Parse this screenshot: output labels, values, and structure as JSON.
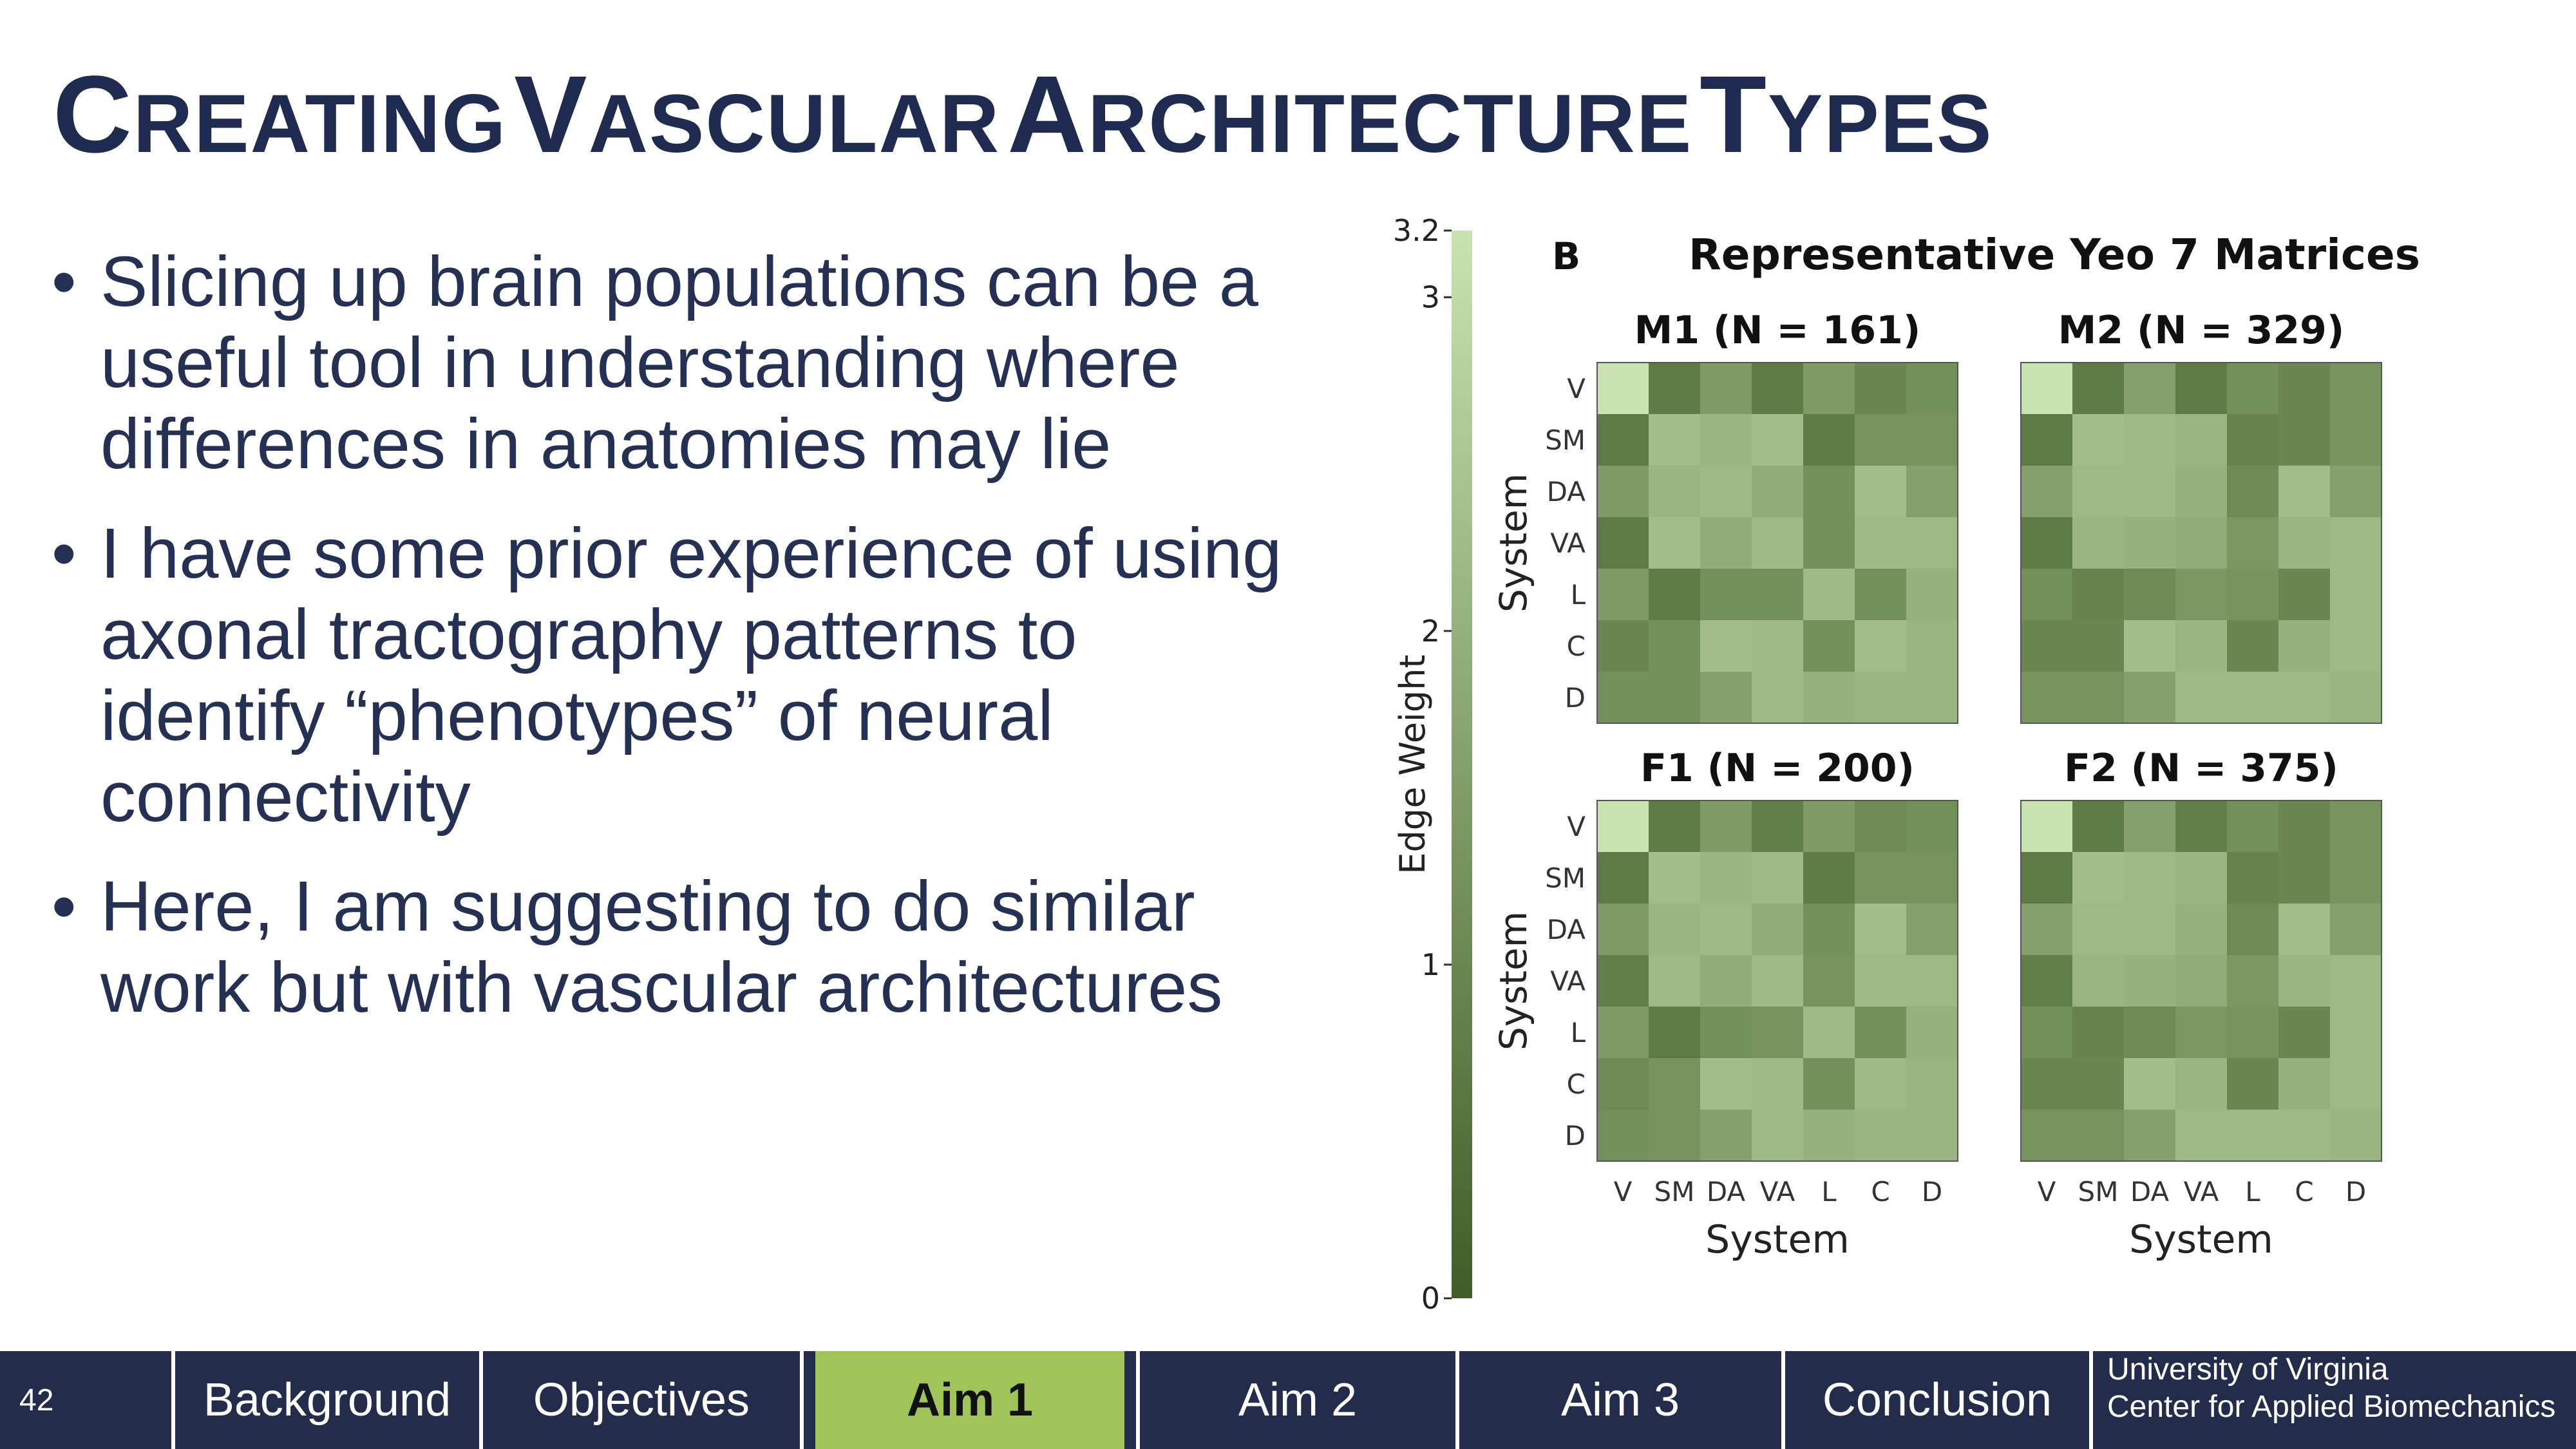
{
  "slide": {
    "title_words": [
      {
        "first": "C",
        "rest": "REATING"
      },
      {
        "first": "V",
        "rest": "ASCULAR"
      },
      {
        "first": "A",
        "rest": "RCHITECTURE"
      },
      {
        "first": "T",
        "rest": "YPES"
      }
    ],
    "bullet_char": "•",
    "bullets": [
      "Slicing up brain populations can be a useful tool in understanding where differences in anatomies may lie",
      "I have some prior experience of using axonal tractography patterns to identify “phenotypes” of neural connectivity",
      "Here, I am suggesting to do similar work but with vascular architectures"
    ]
  },
  "chart_data": {
    "type": "heatmap",
    "panel_letter": "B",
    "title": "Representative Yeo 7 Matrices",
    "systems": [
      "V",
      "SM",
      "DA",
      "VA",
      "L",
      "C",
      "D"
    ],
    "xlabel": "System",
    "ylabel": "System",
    "colorbar": {
      "label": "Edge Weight",
      "ticks": [
        "0",
        "1",
        "2",
        "3",
        "3.2"
      ],
      "range": [
        0,
        3.2
      ],
      "color_low": "#3f5e27",
      "color_high": "#c8e2b0"
    },
    "matrices": [
      {
        "title": "M1 (N = 161)",
        "values": [
          [
            3.2,
            0.7,
            1.5,
            0.7,
            1.5,
            1.0,
            1.2
          ],
          [
            0.7,
            2.3,
            2.1,
            2.3,
            0.7,
            1.3,
            1.3
          ],
          [
            1.5,
            2.1,
            2.2,
            1.9,
            1.2,
            2.3,
            1.6
          ],
          [
            0.7,
            2.3,
            1.9,
            2.2,
            1.2,
            2.2,
            2.2
          ],
          [
            1.5,
            0.7,
            1.2,
            1.2,
            2.2,
            1.2,
            2.0
          ],
          [
            1.0,
            1.2,
            2.3,
            2.2,
            1.2,
            2.3,
            2.1
          ],
          [
            1.2,
            1.2,
            1.6,
            2.2,
            2.0,
            2.1,
            2.1
          ]
        ]
      },
      {
        "title": "M2 (N = 329)",
        "values": [
          [
            3.2,
            0.7,
            1.6,
            0.7,
            1.2,
            1.0,
            1.3
          ],
          [
            0.7,
            2.3,
            2.2,
            2.1,
            0.9,
            1.0,
            1.3
          ],
          [
            1.6,
            2.2,
            2.2,
            2.0,
            1.1,
            2.3,
            1.6
          ],
          [
            0.7,
            2.1,
            2.0,
            1.9,
            1.4,
            2.1,
            2.2
          ],
          [
            1.2,
            0.9,
            1.1,
            1.4,
            1.3,
            1.0,
            2.2
          ],
          [
            1.0,
            1.0,
            2.3,
            2.1,
            1.0,
            2.0,
            2.2
          ],
          [
            1.3,
            1.3,
            1.6,
            2.2,
            2.2,
            2.2,
            2.1
          ]
        ]
      },
      {
        "title": "F1 (N = 200)",
        "values": [
          [
            3.2,
            0.7,
            1.5,
            0.8,
            1.5,
            1.1,
            1.2
          ],
          [
            0.7,
            2.3,
            2.1,
            2.2,
            0.7,
            1.3,
            1.3
          ],
          [
            1.5,
            2.1,
            2.2,
            1.9,
            1.2,
            2.3,
            1.6
          ],
          [
            0.8,
            2.2,
            1.9,
            2.2,
            1.3,
            2.2,
            2.2
          ],
          [
            1.5,
            0.7,
            1.2,
            1.3,
            2.2,
            1.2,
            2.0
          ],
          [
            1.1,
            1.3,
            2.3,
            2.2,
            1.2,
            2.2,
            2.1
          ],
          [
            1.2,
            1.3,
            1.6,
            2.2,
            2.0,
            2.1,
            2.1
          ]
        ]
      },
      {
        "title": "F2 (N = 375)",
        "values": [
          [
            3.2,
            0.7,
            1.6,
            0.8,
            1.2,
            1.0,
            1.3
          ],
          [
            0.7,
            2.3,
            2.2,
            2.1,
            0.9,
            1.0,
            1.3
          ],
          [
            1.6,
            2.2,
            2.2,
            2.0,
            1.1,
            2.3,
            1.6
          ],
          [
            0.8,
            2.1,
            2.0,
            1.9,
            1.4,
            2.1,
            2.2
          ],
          [
            1.2,
            0.9,
            1.1,
            1.4,
            1.3,
            1.0,
            2.2
          ],
          [
            1.0,
            1.0,
            2.3,
            2.1,
            1.0,
            2.0,
            2.2
          ],
          [
            1.3,
            1.3,
            1.6,
            2.2,
            2.2,
            2.2,
            2.1
          ]
        ]
      }
    ]
  },
  "nav": {
    "page_number": "42",
    "tabs": [
      {
        "label": "Background",
        "active": false
      },
      {
        "label": "Objectives",
        "active": false
      },
      {
        "label": "Aim 1",
        "active": true
      },
      {
        "label": "Aim 2",
        "active": false
      },
      {
        "label": "Aim 3",
        "active": false
      },
      {
        "label": "Conclusion",
        "active": false
      }
    ],
    "footer_line1": "University of Virginia",
    "footer_line2": "Center for Applied Biomechanics",
    "active_color": "#a1c45a",
    "bar_color": "#232d4b"
  }
}
